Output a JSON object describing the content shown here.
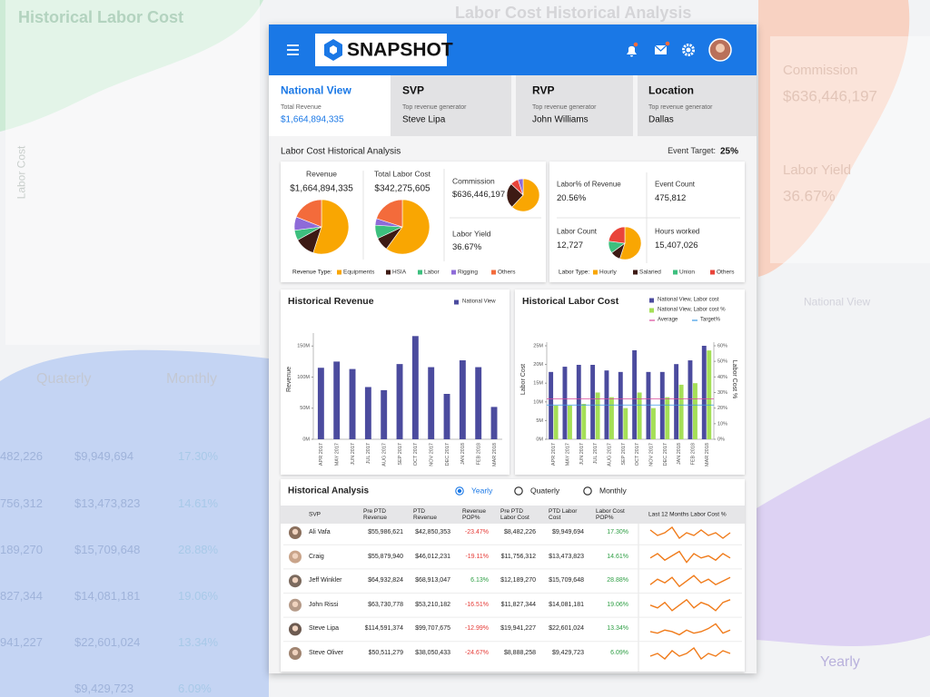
{
  "background": {
    "texts": [
      "Historical Labor Cost",
      "Labor Cost Historical Analysis",
      "Commission",
      "$636,446,197",
      "Labor Yield",
      "36.67%",
      "Quaterly",
      "Monthly",
      "Yearly",
      "Labor Cost",
      "National View",
      "482,226",
      "$9,949,694",
      "17.30%",
      "756,312",
      "$13,473,823",
      "14.61%",
      "189,270",
      "$15,709,648",
      "28.88%",
      "827,344",
      "$14,081,181",
      "19.06%",
      "941,227",
      "$22,601,024",
      "13.34%",
      "$9,429,723",
      "6.09%"
    ]
  },
  "header": {
    "logo": "SNAPSHOT"
  },
  "tabs": [
    {
      "title": "National View",
      "label": "Total Revenue",
      "value": "$1,664,894,335",
      "active": true
    },
    {
      "title": "SVP",
      "label": "Top revenue generator",
      "value": "Steve Lipa"
    },
    {
      "title": "RVP",
      "label": "Top revenue generator",
      "value": "John Williams"
    },
    {
      "title": "Location",
      "label": "Top revenue generator",
      "value": "Dallas"
    }
  ],
  "section": {
    "title": "Labor Cost Historical Analysis",
    "target_label": "Event Target:",
    "target_value": "25%"
  },
  "summary": {
    "revenue": {
      "label": "Revenue",
      "value": "$1,664,894,335",
      "values": [
        55,
        12,
        6,
        8,
        19
      ]
    },
    "labor_cost": {
      "label": "Total Labor Cost",
      "value": "$342,275,605",
      "values": [
        60,
        8,
        8,
        4,
        20
      ]
    },
    "commission": {
      "label": "Commission",
      "value": "$636,446,197",
      "values": [
        62,
        25,
        8,
        5
      ],
      "colors": [
        "#f9a602",
        "#3d1a14",
        "#e9443a",
        "#8e6bd8"
      ]
    },
    "labor_yield": {
      "label": "Labor Yield",
      "value": "36.67%"
    },
    "legend": {
      "title": "Revenue Type:",
      "items": [
        {
          "name": "Equipments",
          "color": "#f9a602"
        },
        {
          "name": "HSIA",
          "color": "#3d1a14"
        },
        {
          "name": "Labor",
          "color": "#3dbf7e"
        },
        {
          "name": "Rigging",
          "color": "#8e6bd8"
        },
        {
          "name": "Others",
          "color": "#f36b3b"
        }
      ]
    }
  },
  "labor": {
    "labor_pct": {
      "label": "Labor% of Revenue",
      "value": "20.56%"
    },
    "event_count": {
      "label": "Event Count",
      "value": "475,812"
    },
    "labor_count": {
      "label": "Labor Count",
      "value": "12,727",
      "values": [
        55,
        10,
        12,
        23
      ]
    },
    "hours": {
      "label": "Hours worked",
      "value": "15,407,026"
    },
    "legend": {
      "title": "Labor Type:",
      "items": [
        {
          "name": "Hourly",
          "color": "#f9a602"
        },
        {
          "name": "Salaried",
          "color": "#3d1a14"
        },
        {
          "name": "Union",
          "color": "#3dbf7e"
        },
        {
          "name": "Others",
          "color": "#e9443a"
        }
      ]
    }
  },
  "chart_data": [
    {
      "type": "bar",
      "title": "Historical Revenue",
      "ylabel": "Revenue",
      "categories": [
        "APR 2017",
        "MAY 2017",
        "JUN 2017",
        "JUL 2017",
        "AUG 2017",
        "SEP 2017",
        "OCT 2017",
        "NOV 2017",
        "DEC 2017",
        "JAN 2018",
        "FEB 2018",
        "MAR 2018"
      ],
      "series": [
        {
          "name": "National View",
          "color": "#4b4b9e",
          "values": [
            115,
            125,
            113,
            84,
            79,
            121,
            166,
            116,
            73,
            127,
            116,
            52
          ]
        }
      ],
      "ylim": [
        0,
        165
      ],
      "yticks": [
        {
          "value": 0,
          "label": "0M"
        },
        {
          "value": 50,
          "label": "50M"
        },
        {
          "value": 100,
          "label": "100M"
        },
        {
          "value": 150,
          "label": "150M"
        }
      ]
    },
    {
      "type": "bar",
      "title": "Historical Labor Cost",
      "ylabel": "Labor Cost",
      "y2label": "Labor Cost %",
      "categories": [
        "APR 2017",
        "MAY 2017",
        "JUN 2017",
        "JUL 2017",
        "AUG 2017",
        "SEP 2017",
        "OCT 2017",
        "NOV 2017",
        "DEC 2017",
        "JAN 2018",
        "FEB 2018",
        "MAR 2018"
      ],
      "series": [
        {
          "name": "National View, Labor cost",
          "color": "#4b4b9e",
          "values": [
            18,
            19.4,
            19.9,
            19.9,
            18.4,
            18,
            23.8,
            18,
            18,
            20.1,
            21.1,
            25
          ]
        },
        {
          "name": "National View, Labor cost %",
          "color": "#a5df57",
          "axis": "y2",
          "values": [
            21.6,
            21.6,
            22.7,
            30,
            27,
            20,
            30,
            20,
            27,
            35,
            36,
            57
          ]
        }
      ],
      "lines": [
        {
          "name": "Average",
          "color": "#d94a9b",
          "value": 26,
          "axis": "y2"
        },
        {
          "name": "Target%",
          "color": "#3c9be6",
          "value": 22,
          "axis": "y2"
        }
      ],
      "ylim": [
        0,
        25
      ],
      "yticks": [
        {
          "value": 0,
          "label": "0M"
        },
        {
          "value": 5,
          "label": "5M"
        },
        {
          "value": 10,
          "label": "10M"
        },
        {
          "value": 15,
          "label": "15M"
        },
        {
          "value": 20,
          "label": "20M"
        },
        {
          "value": 25,
          "label": "25M"
        }
      ],
      "y2lim": [
        0,
        60
      ],
      "y2ticks": [
        {
          "value": 0,
          "label": "0%"
        },
        {
          "value": 10,
          "label": "10%"
        },
        {
          "value": 20,
          "label": "20%"
        },
        {
          "value": 30,
          "label": "30%"
        },
        {
          "value": 40,
          "label": "40%"
        },
        {
          "value": 50,
          "label": "50%"
        },
        {
          "value": 60,
          "label": "60%"
        }
      ]
    }
  ],
  "analysis": {
    "title": "Historical Analysis",
    "options": [
      "Yearly",
      "Quaterly",
      "Monthly"
    ],
    "selected": 0,
    "columns": [
      "SVP",
      "Pre PTD Revenue",
      "PTD Revenue",
      "Revenue POP%",
      "Pre PTD Labor Cost",
      "PTD Labor Cost",
      "Labor Cost POP%",
      "Last 12 Months Labor Cost %"
    ],
    "rows": [
      {
        "name": "Ali Vafa",
        "cells": [
          "$55,986,621",
          "$42,850,353",
          "-23.47%",
          "$8,482,226",
          "$9,949,694",
          "17.30%"
        ],
        "trend": [
          18,
          16,
          17,
          19,
          15,
          17,
          16,
          18,
          16,
          17,
          15,
          17
        ]
      },
      {
        "name": "Craig",
        "cells": [
          "$55,879,940",
          "$46,012,231",
          "-19.11%",
          "$11,756,312",
          "$13,473,823",
          "14.61%"
        ],
        "trend": [
          15,
          17,
          14,
          16,
          18,
          13,
          17,
          15,
          16,
          14,
          17,
          15
        ]
      },
      {
        "name": "Jeff Winkler",
        "cells": [
          "$64,932,824",
          "$68,913,047",
          "6.13%",
          "$12,189,270",
          "$15,709,648",
          "28.88%"
        ],
        "trend": [
          26,
          29,
          27,
          30,
          25,
          28,
          31,
          27,
          29,
          26,
          28,
          30
        ]
      },
      {
        "name": "John Rissi",
        "cells": [
          "$63,730,778",
          "$53,210,182",
          "-16.51%",
          "$11,827,344",
          "$14,081,181",
          "19.06%"
        ],
        "trend": [
          19,
          18,
          20,
          17,
          19,
          21,
          18,
          20,
          19,
          17,
          20,
          21
        ]
      },
      {
        "name": "Steve Lipa",
        "cells": [
          "$114,591,374",
          "$99,707,675",
          "-12.99%",
          "$19,941,227",
          "$22,601,024",
          "13.34%"
        ],
        "trend": [
          13,
          12,
          14,
          13,
          11,
          14,
          12,
          13,
          15,
          18,
          12,
          14
        ]
      },
      {
        "name": "Steve Oliver",
        "cells": [
          "$50,511,279",
          "$38,050,433",
          "-24.67%",
          "$8,888,258",
          "$9,429,723",
          "6.09%"
        ],
        "trend": [
          6,
          7,
          5,
          8,
          6,
          7,
          9,
          5,
          7,
          6,
          8,
          7
        ]
      }
    ]
  }
}
